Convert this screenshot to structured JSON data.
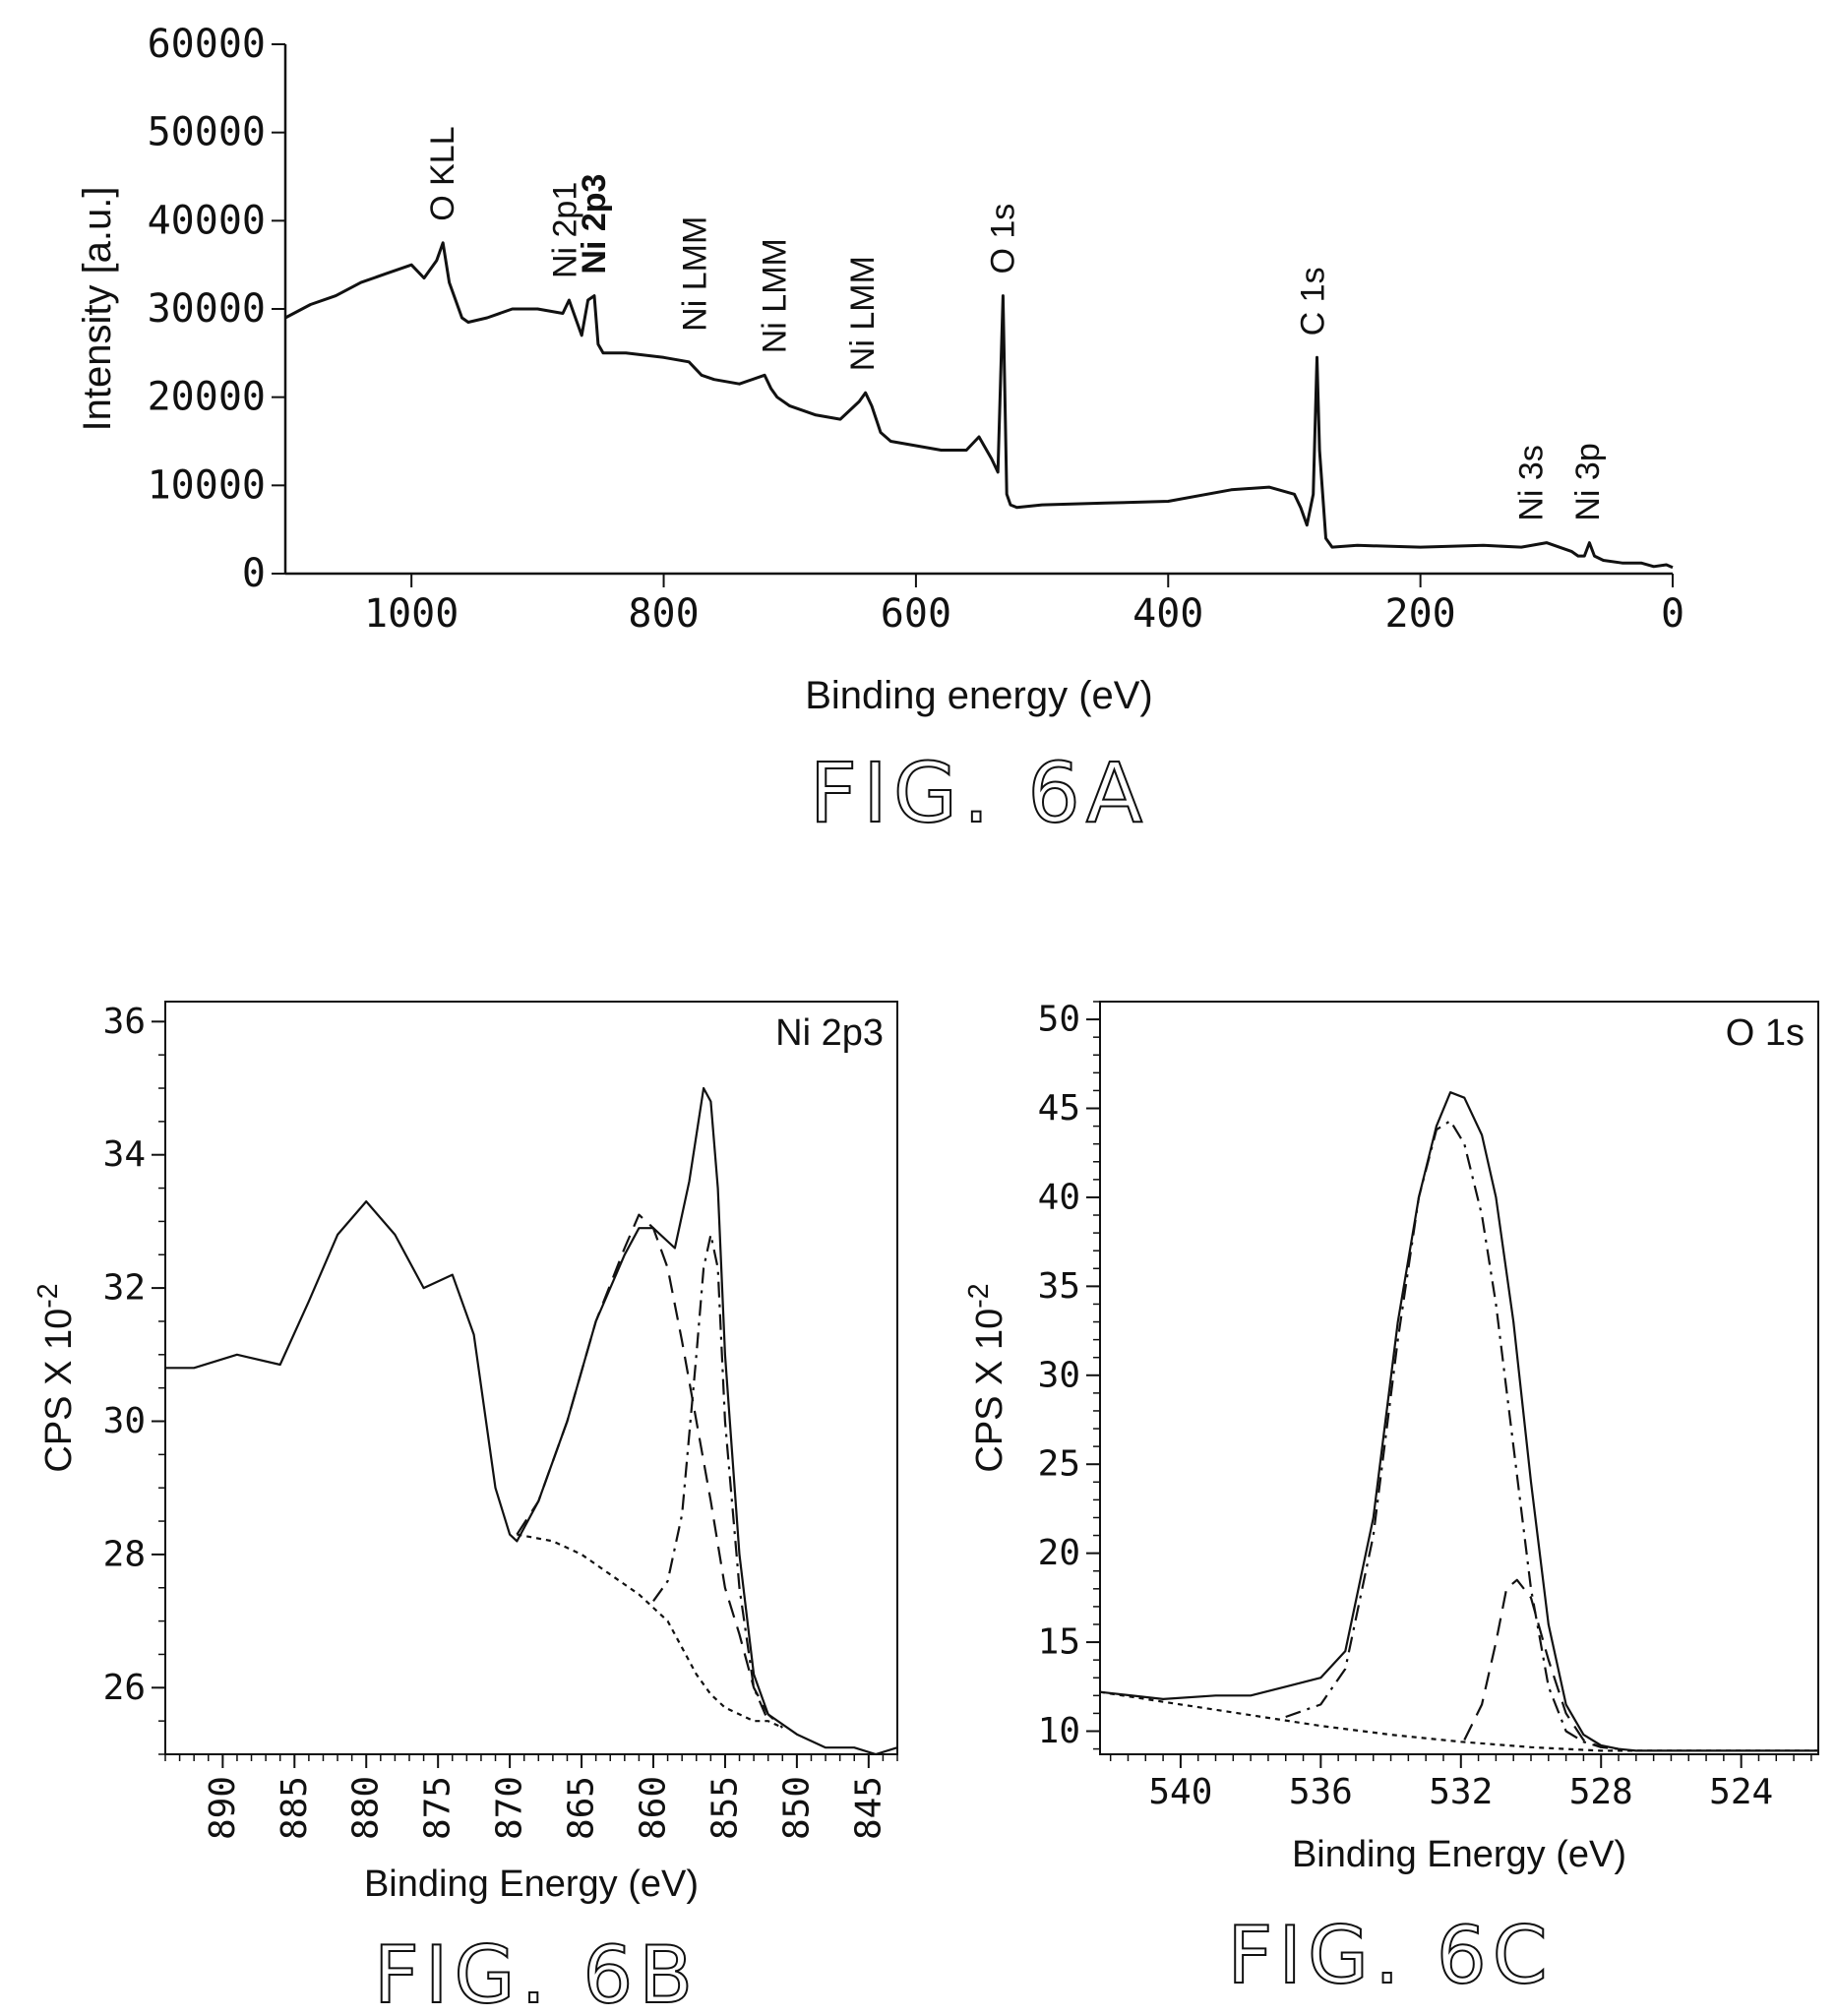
{
  "chart_data": [
    {
      "type": "line",
      "caption": "FIG. 6A",
      "xlabel": "Binding energy (eV)",
      "ylabel": "Intensity [a.u.]",
      "xlim": [
        1100,
        0
      ],
      "ylim": [
        0,
        60000
      ],
      "x_reversed": true,
      "xticks": [
        1000,
        800,
        600,
        400,
        200,
        0
      ],
      "yticks": [
        0,
        10000,
        20000,
        30000,
        40000,
        50000,
        60000
      ],
      "grid": false,
      "series": [
        {
          "x": [
            1100,
            1080,
            1060,
            1040,
            1020,
            1000,
            990,
            980,
            975,
            970,
            960,
            955,
            940,
            920,
            900,
            880,
            875,
            870,
            865,
            860,
            855,
            852,
            848,
            830,
            800,
            780,
            770,
            760,
            740,
            720,
            715,
            710,
            700,
            680,
            660,
            645,
            640,
            635,
            628,
            620,
            600,
            580,
            560,
            550,
            540,
            535,
            531,
            528,
            525,
            520,
            500,
            450,
            400,
            350,
            320,
            300,
            295,
            290,
            285,
            282,
            280,
            275,
            270,
            250,
            200,
            150,
            120,
            100,
            80,
            75,
            70,
            66,
            62,
            55,
            40,
            25,
            15,
            5,
            0
          ],
          "y": [
            29000,
            30500,
            31500,
            33000,
            34000,
            35000,
            33500,
            35500,
            37500,
            33000,
            29000,
            28500,
            29000,
            30000,
            30000,
            29500,
            31000,
            29000,
            27000,
            31000,
            31500,
            26000,
            25000,
            25000,
            24500,
            24000,
            22500,
            22000,
            21500,
            22500,
            21000,
            20000,
            19000,
            18000,
            17500,
            19500,
            20500,
            19000,
            16000,
            15000,
            14500,
            14000,
            14000,
            15500,
            13000,
            11500,
            31500,
            9000,
            7800,
            7500,
            7800,
            8000,
            8200,
            9500,
            9800,
            9000,
            7500,
            5500,
            9000,
            24500,
            14000,
            4000,
            3000,
            3200,
            3000,
            3200,
            3000,
            3500,
            2500,
            2000,
            2000,
            3500,
            2000,
            1500,
            1200,
            1200,
            800,
            1000,
            700
          ]
        }
      ],
      "annotations": [
        {
          "text": "O KLL",
          "x": 975,
          "y": 37500,
          "bold": false
        },
        {
          "text": "Ni 2p1",
          "x": 878,
          "y": 31000,
          "bold": false
        },
        {
          "text": "Ni 2p3",
          "x": 855,
          "y": 31500,
          "bold": true
        },
        {
          "text": "Ni LMM",
          "x": 775,
          "y": 25000,
          "bold": false
        },
        {
          "text": "Ni LMM",
          "x": 712,
          "y": 22500,
          "bold": false
        },
        {
          "text": "Ni LMM",
          "x": 642,
          "y": 20500,
          "bold": false
        },
        {
          "text": "O 1s",
          "x": 531,
          "y": 31500,
          "bold": false
        },
        {
          "text": "C 1s",
          "x": 285,
          "y": 24500,
          "bold": false
        },
        {
          "text": "Ni 3s",
          "x": 112,
          "y": 3500,
          "bold": false
        },
        {
          "text": "Ni 3p",
          "x": 67,
          "y": 3500,
          "bold": false
        }
      ]
    },
    {
      "type": "line",
      "caption": "FIG. 6B",
      "title": "Ni 2p3",
      "xlabel": "Binding Energy (eV)",
      "ylabel": "CPS X 10",
      "ylabel_exponent": "-2",
      "xlim": [
        894,
        843
      ],
      "ylim": [
        25,
        36.3
      ],
      "x_reversed": true,
      "xticks": [
        890,
        885,
        880,
        875,
        870,
        865,
        860,
        855,
        850,
        845
      ],
      "yticks": [
        26,
        28,
        30,
        32,
        34,
        36
      ],
      "grid": false,
      "series": [
        {
          "style": "solid",
          "x": [
            894,
            892,
            889,
            886,
            884,
            882,
            880,
            878,
            876,
            874,
            872.5,
            871,
            870,
            869.5,
            868,
            866,
            864,
            862,
            861,
            860,
            858.5,
            857.5,
            856.5,
            856,
            855.5,
            855,
            854,
            853,
            852,
            850,
            848,
            846,
            844.5,
            843
          ],
          "y": [
            30.8,
            30.8,
            31,
            30.85,
            31.8,
            32.8,
            33.3,
            32.8,
            32,
            32.2,
            31.3,
            29,
            28.3,
            28.2,
            28.8,
            30,
            31.5,
            32.5,
            32.9,
            32.9,
            32.6,
            33.6,
            35.0,
            34.8,
            33.5,
            31,
            28,
            26.2,
            25.6,
            25.3,
            25.1,
            25.1,
            25.0,
            25.1
          ]
        },
        {
          "style": "dashed",
          "x": [
            869.5,
            868,
            866,
            864,
            862,
            861,
            860,
            859,
            858,
            857,
            856,
            855,
            854,
            853,
            852,
            851
          ],
          "y": [
            28.3,
            28.8,
            30,
            31.5,
            32.6,
            33.1,
            32.9,
            32.3,
            31.2,
            30.0,
            28.8,
            27.5,
            26.8,
            26.0,
            25.6,
            25.4
          ]
        },
        {
          "style": "dashdot",
          "x": [
            860,
            859,
            858,
            857,
            856.5,
            856,
            855.5,
            855,
            854,
            853,
            852
          ],
          "y": [
            27.3,
            27.6,
            28.6,
            31.0,
            32.3,
            32.8,
            32.3,
            30.0,
            27.5,
            26.0,
            25.5
          ]
        },
        {
          "style": "dotted",
          "x": [
            869.5,
            867,
            865,
            863,
            861,
            859,
            858,
            857,
            856,
            855,
            854,
            853,
            852,
            851
          ],
          "y": [
            28.3,
            28.2,
            28.0,
            27.7,
            27.4,
            27.0,
            26.6,
            26.2,
            25.9,
            25.7,
            25.6,
            25.5,
            25.5,
            25.4
          ]
        }
      ]
    },
    {
      "type": "line",
      "caption": "FIG. 6C",
      "title": "O 1s",
      "xlabel": "Binding Energy (eV)",
      "ylabel": "CPS X 10",
      "ylabel_exponent": "-2",
      "xlim": [
        542.3,
        521.8
      ],
      "ylim": [
        8.7,
        51
      ],
      "x_reversed": true,
      "xticks": [
        540,
        536,
        532,
        528,
        524
      ],
      "yticks": [
        10,
        15,
        20,
        25,
        30,
        35,
        40,
        45,
        50
      ],
      "grid": false,
      "series": [
        {
          "style": "solid",
          "x": [
            542.3,
            540.5,
            539,
            538,
            537,
            536,
            535.3,
            534.5,
            533.8,
            533.2,
            532.7,
            532.3,
            531.9,
            531.4,
            531,
            530.5,
            530,
            529.5,
            529,
            528.5,
            528,
            527.5,
            527,
            526,
            524,
            521.8
          ],
          "y": [
            12.2,
            11.8,
            12.0,
            12.0,
            12.5,
            13.0,
            14.5,
            22,
            33,
            40,
            44,
            45.9,
            45.6,
            43.5,
            40,
            33,
            24,
            16,
            11.5,
            9.8,
            9.2,
            9.0,
            8.9,
            8.9,
            8.9,
            8.9
          ]
        },
        {
          "style": "dashdot",
          "x": [
            537,
            536,
            535.3,
            534.5,
            533.8,
            533.2,
            532.7,
            532.3,
            531.9,
            531.4,
            531,
            530.5,
            530,
            529.5,
            529,
            528.5,
            528,
            527.5
          ],
          "y": [
            10.8,
            11.5,
            13.5,
            21,
            32,
            40,
            43.8,
            44.3,
            43,
            39,
            34,
            26,
            18,
            12.5,
            10,
            9.4,
            9.1,
            9.0
          ]
        },
        {
          "style": "dashed",
          "x": [
            531.9,
            531.4,
            531,
            530.7,
            530.4,
            530,
            529.5,
            529,
            528.5,
            528
          ],
          "y": [
            9.5,
            11.5,
            15,
            18.0,
            18.5,
            17.5,
            14,
            11,
            9.5,
            9.1
          ]
        },
        {
          "style": "dotted",
          "x": [
            542.3,
            540,
            538,
            536,
            534,
            532,
            530,
            528,
            526,
            524,
            521.8
          ],
          "y": [
            12.2,
            11.5,
            10.9,
            10.3,
            9.8,
            9.4,
            9.1,
            8.9,
            8.9,
            8.9,
            8.9
          ]
        }
      ]
    }
  ]
}
